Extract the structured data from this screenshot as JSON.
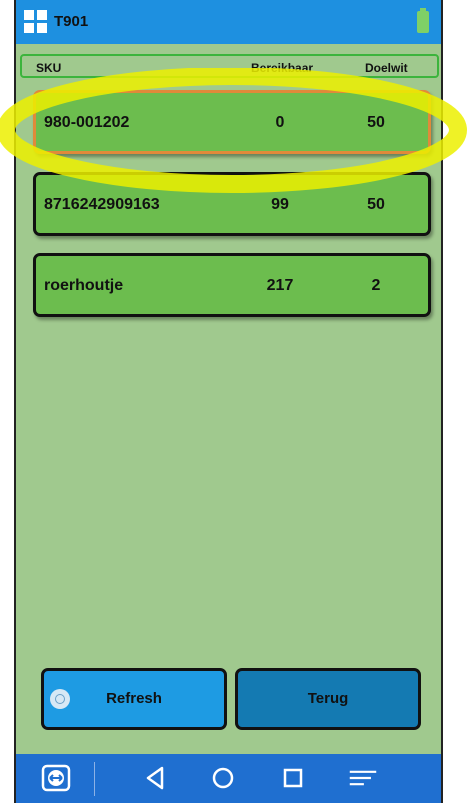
{
  "app": {
    "title": "T901"
  },
  "table": {
    "headers": {
      "sku": "SKU",
      "available": "Bereikbaar",
      "target": "Doelwit"
    },
    "rows": [
      {
        "sku": "980-001202",
        "available": "0",
        "target": "50"
      },
      {
        "sku": "8716242909163",
        "available": "99",
        "target": "50"
      },
      {
        "sku": "roerhoutje",
        "available": "217",
        "target": "2"
      }
    ]
  },
  "buttons": {
    "refresh": "Refresh",
    "back": "Terug"
  },
  "colors": {
    "accent": "#1e90e0",
    "row": "#6cbd4e",
    "background": "#a0c98e",
    "selected_border": "#e08a3a",
    "annotation": "#ecf000"
  },
  "icons": [
    "app-grid-icon",
    "battery-icon",
    "refresh-icon",
    "teamviewer-icon",
    "back-icon",
    "home-icon",
    "recents-icon",
    "menu-icon"
  ]
}
